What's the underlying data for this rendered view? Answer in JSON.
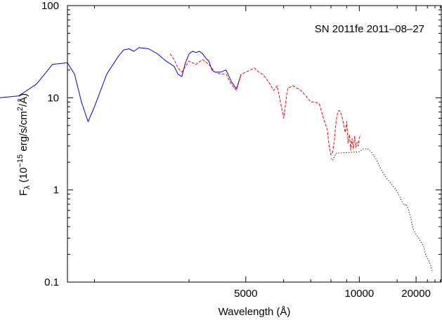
{
  "chart_data": {
    "type": "line",
    "annotation": "SN 2011fe 2011–08–27",
    "xlabel": "Wavelength (Å)",
    "ylabel": {
      "base": "F",
      "sub": "λ",
      "prefix": " (10",
      "exp": "−15",
      "middle": " erg/s/cm",
      "exp2": "2",
      "suffix": "/Å)"
    },
    "x_scale": "reciprocal",
    "y_scale": "log",
    "xlim": [
      2800,
      36000
    ],
    "ylim": [
      0.1,
      100
    ],
    "x_ticks": [
      {
        "value": 5000,
        "label": "5000"
      },
      {
        "value": 10000,
        "label": "10000"
      },
      {
        "value": 20000,
        "label": "20000"
      }
    ],
    "y_ticks": [
      {
        "value": 0.1,
        "label": "0.1"
      },
      {
        "value": 1,
        "label": "1"
      },
      {
        "value": 10,
        "label": "10"
      },
      {
        "value": 100,
        "label": "100"
      }
    ],
    "grid": false,
    "series": [
      {
        "color": "#0000ff",
        "style": "solid",
        "x": [
          1600,
          1640,
          1680,
          1700,
          1720,
          1750,
          1780,
          1800,
          1840,
          1870,
          1890,
          1910,
          1950,
          2000,
          2050,
          2100,
          2150,
          2200,
          2300,
          2400,
          2500,
          2600,
          2650,
          2700,
          2800,
          2850,
          2900,
          2950,
          3000,
          3100,
          3200,
          3250,
          3300,
          3350,
          3400,
          3500,
          3600,
          3700,
          3800,
          3850,
          3900,
          3950,
          4000,
          4050,
          4100,
          4150,
          4200,
          4250,
          4300,
          4350,
          4400,
          4500,
          4600,
          4700,
          4800,
          4900
        ],
        "y": [
          0.65,
          2.0,
          1.6,
          2.1,
          1.8,
          3.5,
          2.8,
          5.0,
          6.0,
          5.0,
          3.5,
          1.4,
          4.5,
          8.0,
          9.0,
          9.5,
          12.0,
          11.0,
          8.0,
          10.0,
          10.5,
          14.0,
          18.0,
          23.0,
          24.0,
          18.0,
          9.0,
          5.5,
          8.0,
          18.0,
          28.0,
          33.0,
          34.0,
          32.0,
          35.0,
          34.0,
          30.0,
          25.0,
          22.0,
          18.0,
          17.0,
          24.0,
          30.0,
          32.0,
          31.0,
          32.0,
          30.0,
          27.0,
          25.0,
          20.0,
          19.0,
          19.0,
          20.0,
          15.0,
          12.5,
          18.0
        ]
      },
      {
        "color": "#ff0000",
        "style": "dashed",
        "x": [
          3750,
          3800,
          3850,
          3900,
          4000,
          4100,
          4200,
          4300,
          4400,
          4500,
          4600,
          4700,
          4800,
          4900,
          5000,
          5100,
          5200,
          5300,
          5400,
          5500,
          5600,
          5700,
          5800,
          5900,
          6000,
          6100,
          6150,
          6200,
          6300,
          6400,
          6500,
          6600,
          6800,
          7000,
          7200,
          7400,
          7600,
          7800,
          7900,
          8000,
          8100,
          8200,
          8300,
          8400,
          8500,
          8600,
          8700,
          8800,
          8900,
          9000,
          9100,
          9200,
          9300,
          9400,
          9500,
          9600,
          9700,
          9800,
          9900,
          10000,
          10100
        ],
        "y": [
          30.0,
          26.0,
          21.0,
          19.0,
          25.0,
          23.0,
          26.0,
          23.0,
          19.0,
          18.0,
          18.0,
          14.0,
          12.0,
          18.0,
          19.0,
          20.0,
          21.0,
          19.0,
          18.0,
          16.0,
          14.0,
          12.0,
          13.5,
          9.0,
          6.0,
          11.0,
          13.0,
          13.0,
          13.5,
          13.0,
          12.5,
          12.0,
          10.5,
          9.0,
          9.0,
          8.5,
          6.0,
          4.5,
          3.0,
          2.4,
          2.6,
          3.5,
          5.5,
          7.0,
          7.3,
          6.8,
          6.0,
          5.0,
          4.2,
          5.5,
          3.2,
          4.0,
          2.7,
          3.6,
          2.8,
          3.8,
          2.9,
          3.3,
          3.0,
          3.6,
          4.0
        ]
      },
      {
        "color": "#000000",
        "style": "dotted",
        "x": [
          8000,
          8100,
          8200,
          8300,
          10000,
          10400,
          10800,
          11300,
          11800,
          12500,
          13300,
          14000,
          14800,
          15500,
          16000,
          16500,
          17000,
          17500,
          18000,
          18500,
          19000,
          19500,
          20000,
          21000,
          22000,
          23000,
          24000,
          25000,
          26000,
          27000,
          28000
        ],
        "y": [
          2.2,
          2.1,
          2.3,
          2.5,
          2.6,
          2.8,
          2.8,
          2.5,
          2.1,
          1.6,
          1.3,
          1.15,
          1.0,
          0.85,
          0.75,
          0.68,
          0.7,
          0.63,
          0.55,
          0.45,
          0.38,
          0.35,
          0.33,
          0.3,
          0.27,
          0.25,
          0.2,
          0.18,
          0.17,
          0.15,
          0.13
        ]
      }
    ]
  }
}
